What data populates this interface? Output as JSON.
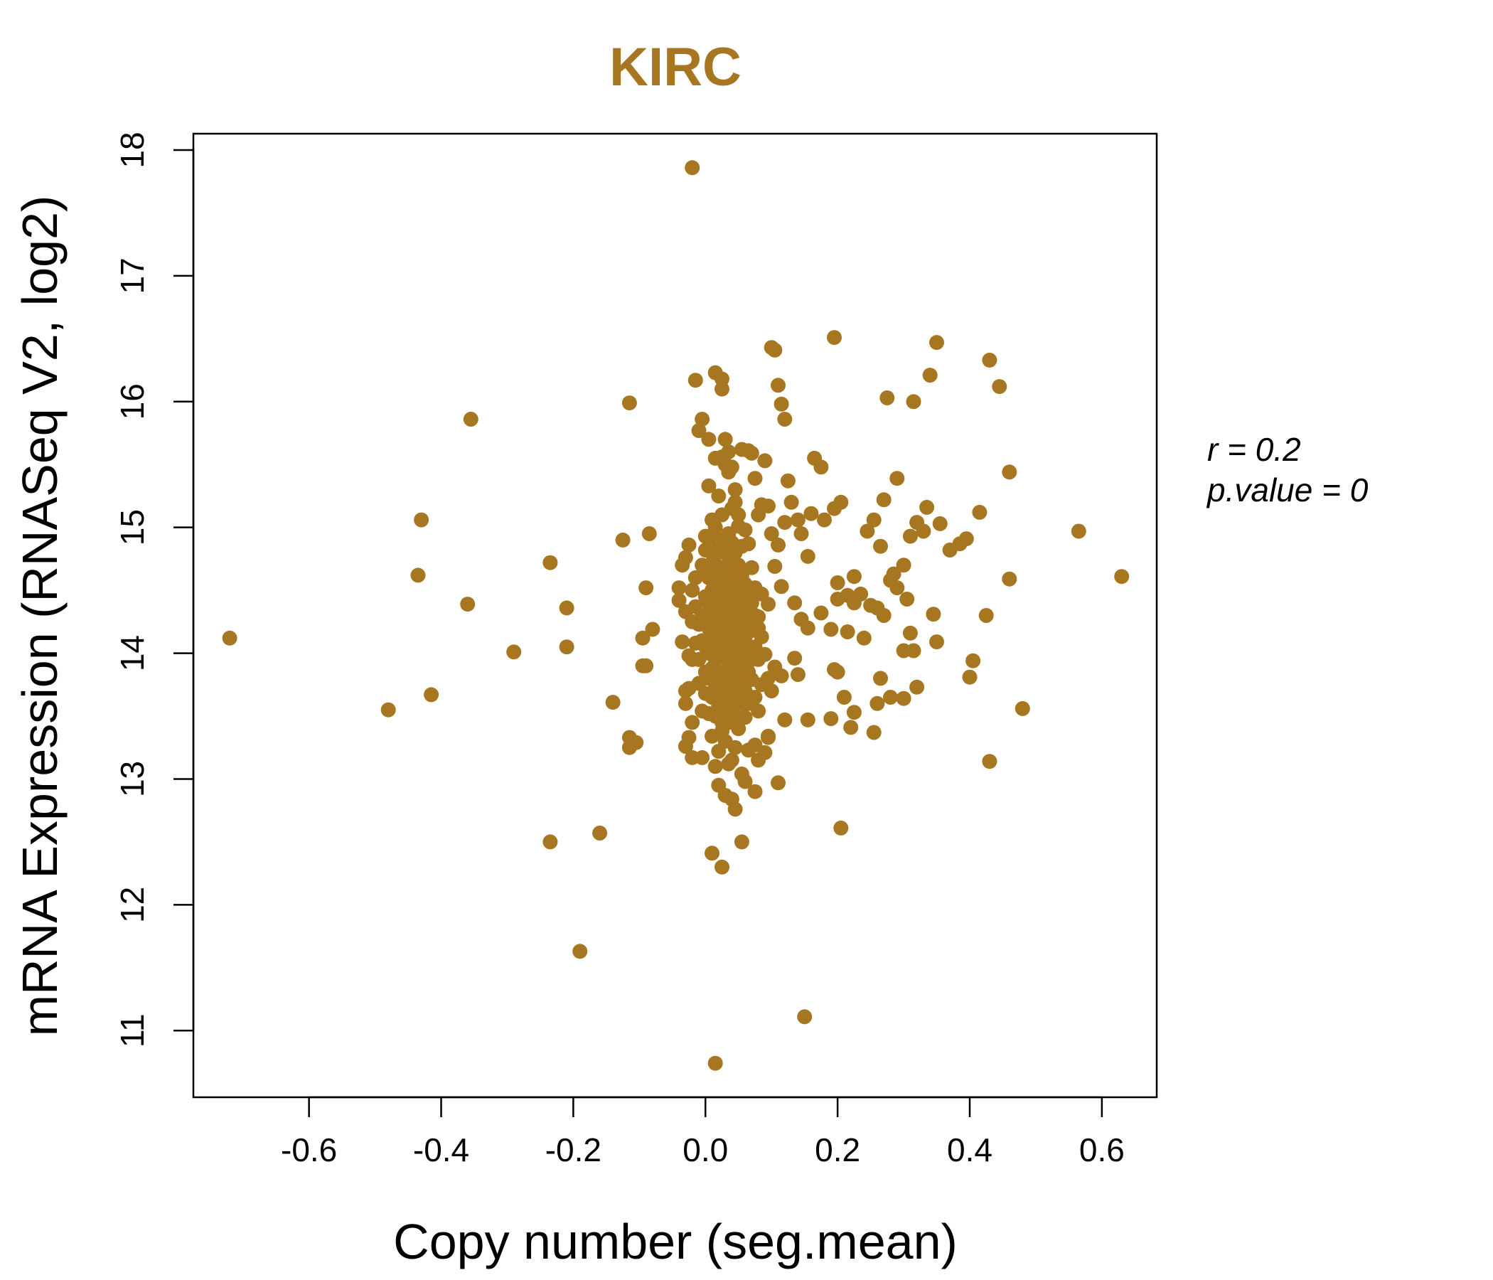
{
  "chart_data": {
    "type": "scatter",
    "title": "KIRC",
    "xlabel": "Copy number (seg.mean)",
    "ylabel": "mRNA Expression (RNASeq V2, log2)",
    "xlim": [
      -0.775,
      0.683
    ],
    "ylim": [
      10.47,
      18.13
    ],
    "xticks": [
      -0.6,
      -0.4,
      -0.2,
      0.0,
      0.2,
      0.4,
      0.6
    ],
    "xtick_labels": [
      "-0.6",
      "-0.4",
      "-0.2",
      "0.0",
      "0.2",
      "0.4",
      "0.6"
    ],
    "yticks": [
      11,
      12,
      13,
      14,
      15,
      16,
      17,
      18
    ],
    "ytick_labels": [
      "11",
      "12",
      "13",
      "14",
      "15",
      "16",
      "17",
      "18"
    ],
    "point_color": "#A67720",
    "grid": false,
    "legend": "none",
    "annotations": {
      "r_label": "r = 0.2",
      "p_label": "p.value = 0"
    },
    "points": [
      [
        -0.72,
        14.12
      ],
      [
        -0.48,
        13.55
      ],
      [
        -0.435,
        14.62
      ],
      [
        -0.43,
        15.06
      ],
      [
        -0.415,
        13.67
      ],
      [
        -0.36,
        14.39
      ],
      [
        -0.355,
        15.86
      ],
      [
        -0.29,
        14.01
      ],
      [
        -0.235,
        14.72
      ],
      [
        -0.235,
        12.5
      ],
      [
        -0.21,
        14.36
      ],
      [
        -0.21,
        14.05
      ],
      [
        -0.19,
        11.63
      ],
      [
        -0.16,
        12.57
      ],
      [
        -0.14,
        13.61
      ],
      [
        -0.125,
        14.9
      ],
      [
        -0.115,
        15.99
      ],
      [
        -0.115,
        13.33
      ],
      [
        -0.115,
        13.25
      ],
      [
        -0.105,
        13.29
      ],
      [
        -0.095,
        14.12
      ],
      [
        -0.095,
        13.9
      ],
      [
        -0.09,
        14.52
      ],
      [
        -0.09,
        13.9
      ],
      [
        -0.085,
        14.95
      ],
      [
        -0.08,
        14.19
      ],
      [
        -0.02,
        17.86
      ],
      [
        -0.015,
        16.17
      ],
      [
        -0.01,
        15.77
      ],
      [
        -0.005,
        15.86
      ],
      [
        0.005,
        15.7
      ],
      [
        0.015,
        16.23
      ],
      [
        0.025,
        16.18
      ],
      [
        0.025,
        16.1
      ],
      [
        0.1,
        16.43
      ],
      [
        0.105,
        16.41
      ],
      [
        0.11,
        16.13
      ],
      [
        0.115,
        15.98
      ],
      [
        0.12,
        15.86
      ],
      [
        0.195,
        16.51
      ],
      [
        0.275,
        16.03
      ],
      [
        0.315,
        16.0
      ],
      [
        0.34,
        16.21
      ],
      [
        0.35,
        16.47
      ],
      [
        0.43,
        16.33
      ],
      [
        0.445,
        16.12
      ],
      [
        0.46,
        15.44
      ],
      [
        0.415,
        15.12
      ],
      [
        0.395,
        14.91
      ],
      [
        0.385,
        14.87
      ],
      [
        0.37,
        14.82
      ],
      [
        0.355,
        15.03
      ],
      [
        0.335,
        15.16
      ],
      [
        0.33,
        14.97
      ],
      [
        0.32,
        15.04
      ],
      [
        0.31,
        14.93
      ],
      [
        0.3,
        14.7
      ],
      [
        0.29,
        15.39
      ],
      [
        0.285,
        14.63
      ],
      [
        0.28,
        14.58
      ],
      [
        0.27,
        15.22
      ],
      [
        0.265,
        14.85
      ],
      [
        0.255,
        15.06
      ],
      [
        0.245,
        14.97
      ],
      [
        0.235,
        14.47
      ],
      [
        0.225,
        14.61
      ],
      [
        0.215,
        14.46
      ],
      [
        0.205,
        15.2
      ],
      [
        0.2,
        14.56
      ],
      [
        0.195,
        15.15
      ],
      [
        0.18,
        15.06
      ],
      [
        0.175,
        15.48
      ],
      [
        0.165,
        15.55
      ],
      [
        0.16,
        15.11
      ],
      [
        0.155,
        14.77
      ],
      [
        0.145,
        14.95
      ],
      [
        0.14,
        15.06
      ],
      [
        0.13,
        15.2
      ],
      [
        0.125,
        15.37
      ],
      [
        0.12,
        15.04
      ],
      [
        0.115,
        14.53
      ],
      [
        0.135,
        14.4
      ],
      [
        0.145,
        14.27
      ],
      [
        0.155,
        14.2
      ],
      [
        0.175,
        14.32
      ],
      [
        0.19,
        14.19
      ],
      [
        0.2,
        14.43
      ],
      [
        0.215,
        14.17
      ],
      [
        0.225,
        14.4
      ],
      [
        0.24,
        14.12
      ],
      [
        0.25,
        14.38
      ],
      [
        0.26,
        14.36
      ],
      [
        0.27,
        14.3
      ],
      [
        0.29,
        14.52
      ],
      [
        0.3,
        14.02
      ],
      [
        0.305,
        14.43
      ],
      [
        0.31,
        14.16
      ],
      [
        0.315,
        14.02
      ],
      [
        0.345,
        14.31
      ],
      [
        0.35,
        14.09
      ],
      [
        0.4,
        13.81
      ],
      [
        0.405,
        13.94
      ],
      [
        0.425,
        14.3
      ],
      [
        0.46,
        14.59
      ],
      [
        0.48,
        13.56
      ],
      [
        0.43,
        13.14
      ],
      [
        0.565,
        14.97
      ],
      [
        0.63,
        14.61
      ],
      [
        0.32,
        13.73
      ],
      [
        0.3,
        13.64
      ],
      [
        0.28,
        13.65
      ],
      [
        0.265,
        13.8
      ],
      [
        0.26,
        13.6
      ],
      [
        0.255,
        13.37
      ],
      [
        0.225,
        13.53
      ],
      [
        0.22,
        13.41
      ],
      [
        0.21,
        13.65
      ],
      [
        0.2,
        13.85
      ],
      [
        0.195,
        13.87
      ],
      [
        0.19,
        13.48
      ],
      [
        0.155,
        13.47
      ],
      [
        0.14,
        13.83
      ],
      [
        0.135,
        13.96
      ],
      [
        0.12,
        13.47
      ],
      [
        0.115,
        13.82
      ],
      [
        0.11,
        12.97
      ],
      [
        0.095,
        13.34
      ],
      [
        0.205,
        12.61
      ],
      [
        0.15,
        11.11
      ],
      [
        0.015,
        10.74
      ],
      [
        0.055,
        12.5
      ],
      [
        0.025,
        12.3
      ],
      [
        0.01,
        12.41
      ],
      [
        0.045,
        12.76
      ],
      [
        0.04,
        12.84
      ],
      [
        0.03,
        12.87
      ],
      [
        0.02,
        12.95
      ],
      [
        0.075,
        12.9
      ],
      [
        0.06,
        12.98
      ],
      [
        0.055,
        13.04
      ],
      [
        0.08,
        13.15
      ],
      [
        0.09,
        13.21
      ],
      [
        0.095,
        13.33
      ],
      [
        0.075,
        13.27
      ],
      [
        0.065,
        13.23
      ],
      [
        -0.03,
        13.26
      ],
      [
        -0.025,
        13.33
      ],
      [
        -0.02,
        13.17
      ],
      [
        -0.03,
        13.6
      ],
      [
        -0.03,
        13.7
      ],
      [
        -0.025,
        13.98
      ],
      [
        -0.035,
        14.09
      ],
      [
        -0.04,
        14.42
      ],
      [
        -0.04,
        14.52
      ],
      [
        -0.035,
        14.7
      ],
      [
        -0.03,
        14.76
      ],
      [
        -0.025,
        14.86
      ],
      [
        -0.02,
        14.5
      ],
      [
        -0.015,
        14.37
      ],
      [
        -0.01,
        14.23
      ],
      [
        -0.01,
        13.76
      ],
      [
        -0.005,
        13.54
      ],
      [
        -0.005,
        13.17
      ],
      [
        0.0,
        14.93
      ],
      [
        0.005,
        15.33
      ],
      [
        0.01,
        15.06
      ],
      [
        0.015,
        15.55
      ],
      [
        0.02,
        15.25
      ],
      [
        0.025,
        15.56
      ],
      [
        0.03,
        15.5
      ],
      [
        0.035,
        15.44
      ],
      [
        0.04,
        15.15
      ],
      [
        0.045,
        15.2
      ],
      [
        0.05,
        15.01
      ],
      [
        0.055,
        15.62
      ],
      [
        0.065,
        15.61
      ],
      [
        0.07,
        15.59
      ],
      [
        0.075,
        15.39
      ],
      [
        0.08,
        15.1
      ],
      [
        0.085,
        15.18
      ],
      [
        0.09,
        15.53
      ],
      [
        0.095,
        15.17
      ],
      [
        0.1,
        14.95
      ],
      [
        0.105,
        14.69
      ],
      [
        0.11,
        14.86
      ],
      [
        0.095,
        14.39
      ],
      [
        0.085,
        14.47
      ],
      [
        0.08,
        14.29
      ],
      [
        0.085,
        14.13
      ],
      [
        0.09,
        13.99
      ],
      [
        0.095,
        13.8
      ],
      [
        0.1,
        13.7
      ],
      [
        0.105,
        13.89
      ],
      [
        0.085,
        13.75
      ],
      [
        0.08,
        13.54
      ],
      [
        0.075,
        13.65
      ],
      [
        0.07,
        13.79
      ],
      [
        0.065,
        13.6
      ],
      [
        0.06,
        13.49
      ],
      [
        0.055,
        13.6
      ],
      [
        0.05,
        13.4
      ],
      [
        0.045,
        13.25
      ],
      [
        0.04,
        13.15
      ],
      [
        0.035,
        13.12
      ],
      [
        0.03,
        13.3
      ],
      [
        0.025,
        13.45
      ],
      [
        0.02,
        13.22
      ],
      [
        0.015,
        13.1
      ],
      [
        0.01,
        13.34
      ],
      [
        0.005,
        13.52
      ],
      [
        0.0,
        13.68
      ],
      [
        0.0,
        13.85
      ],
      [
        0.0,
        14.05
      ],
      [
        0.0,
        14.25
      ],
      [
        0.0,
        14.45
      ],
      [
        0.0,
        14.65
      ],
      [
        0.0,
        14.82
      ],
      [
        0.005,
        13.8
      ],
      [
        0.005,
        14.0
      ],
      [
        0.005,
        14.2
      ],
      [
        0.005,
        14.4
      ],
      [
        0.005,
        14.6
      ],
      [
        0.01,
        13.65
      ],
      [
        0.01,
        13.88
      ],
      [
        0.01,
        14.1
      ],
      [
        0.01,
        14.3
      ],
      [
        0.01,
        14.5
      ],
      [
        0.01,
        14.72
      ],
      [
        0.01,
        14.92
      ],
      [
        0.015,
        13.5
      ],
      [
        0.015,
        13.72
      ],
      [
        0.015,
        13.95
      ],
      [
        0.015,
        14.15
      ],
      [
        0.015,
        14.35
      ],
      [
        0.015,
        14.55
      ],
      [
        0.015,
        14.78
      ],
      [
        0.015,
        15.0
      ],
      [
        0.02,
        13.58
      ],
      [
        0.02,
        13.8
      ],
      [
        0.02,
        14.02
      ],
      [
        0.02,
        14.22
      ],
      [
        0.02,
        14.42
      ],
      [
        0.02,
        14.62
      ],
      [
        0.02,
        14.85
      ],
      [
        0.025,
        13.38
      ],
      [
        0.025,
        13.62
      ],
      [
        0.025,
        13.85
      ],
      [
        0.025,
        14.06
      ],
      [
        0.025,
        14.27
      ],
      [
        0.025,
        14.48
      ],
      [
        0.025,
        14.68
      ],
      [
        0.025,
        14.9
      ],
      [
        0.025,
        15.1
      ],
      [
        0.03,
        13.55
      ],
      [
        0.03,
        13.76
      ],
      [
        0.03,
        13.98
      ],
      [
        0.03,
        14.18
      ],
      [
        0.03,
        14.38
      ],
      [
        0.03,
        14.58
      ],
      [
        0.03,
        14.8
      ],
      [
        0.035,
        13.45
      ],
      [
        0.035,
        13.68
      ],
      [
        0.035,
        13.9
      ],
      [
        0.035,
        14.1
      ],
      [
        0.035,
        14.3
      ],
      [
        0.035,
        14.52
      ],
      [
        0.035,
        14.72
      ],
      [
        0.035,
        14.95
      ],
      [
        0.04,
        13.58
      ],
      [
        0.04,
        13.8
      ],
      [
        0.04,
        14.0
      ],
      [
        0.04,
        14.22
      ],
      [
        0.04,
        14.44
      ],
      [
        0.04,
        14.65
      ],
      [
        0.04,
        14.88
      ],
      [
        0.045,
        13.5
      ],
      [
        0.045,
        13.72
      ],
      [
        0.045,
        13.93
      ],
      [
        0.045,
        14.14
      ],
      [
        0.045,
        14.36
      ],
      [
        0.045,
        14.58
      ],
      [
        0.045,
        14.8
      ],
      [
        0.05,
        13.62
      ],
      [
        0.05,
        13.84
      ],
      [
        0.05,
        14.06
      ],
      [
        0.05,
        14.27
      ],
      [
        0.05,
        14.49
      ],
      [
        0.05,
        14.7
      ],
      [
        0.055,
        13.75
      ],
      [
        0.055,
        13.97
      ],
      [
        0.055,
        14.18
      ],
      [
        0.055,
        14.4
      ],
      [
        0.055,
        14.62
      ],
      [
        0.055,
        14.85
      ],
      [
        0.06,
        13.7
      ],
      [
        0.06,
        13.92
      ],
      [
        0.06,
        14.12
      ],
      [
        0.06,
        14.33
      ],
      [
        0.06,
        14.55
      ],
      [
        0.065,
        13.85
      ],
      [
        0.065,
        14.05
      ],
      [
        0.065,
        14.26
      ],
      [
        0.065,
        14.48
      ],
      [
        0.07,
        13.95
      ],
      [
        0.07,
        14.18
      ],
      [
        0.07,
        14.4
      ],
      [
        0.075,
        14.05
      ],
      [
        0.075,
        14.3
      ],
      [
        0.08,
        13.95
      ],
      [
        0.08,
        14.2
      ],
      [
        0.075,
        14.52
      ],
      [
        0.07,
        14.68
      ],
      [
        0.065,
        14.87
      ],
      [
        0.06,
        14.98
      ],
      [
        0.05,
        15.1
      ],
      [
        0.045,
        15.3
      ],
      [
        0.04,
        15.48
      ],
      [
        0.035,
        15.6
      ],
      [
        0.03,
        15.7
      ],
      [
        -0.02,
        13.95
      ],
      [
        -0.015,
        14.08
      ],
      [
        -0.015,
        14.6
      ],
      [
        -0.01,
        13.95
      ],
      [
        -0.005,
        14.1
      ],
      [
        -0.005,
        14.3
      ],
      [
        -0.005,
        14.7
      ],
      [
        -0.02,
        13.45
      ],
      [
        -0.025,
        13.72
      ],
      [
        -0.03,
        14.33
      ],
      [
        -0.02,
        14.25
      ]
    ]
  }
}
